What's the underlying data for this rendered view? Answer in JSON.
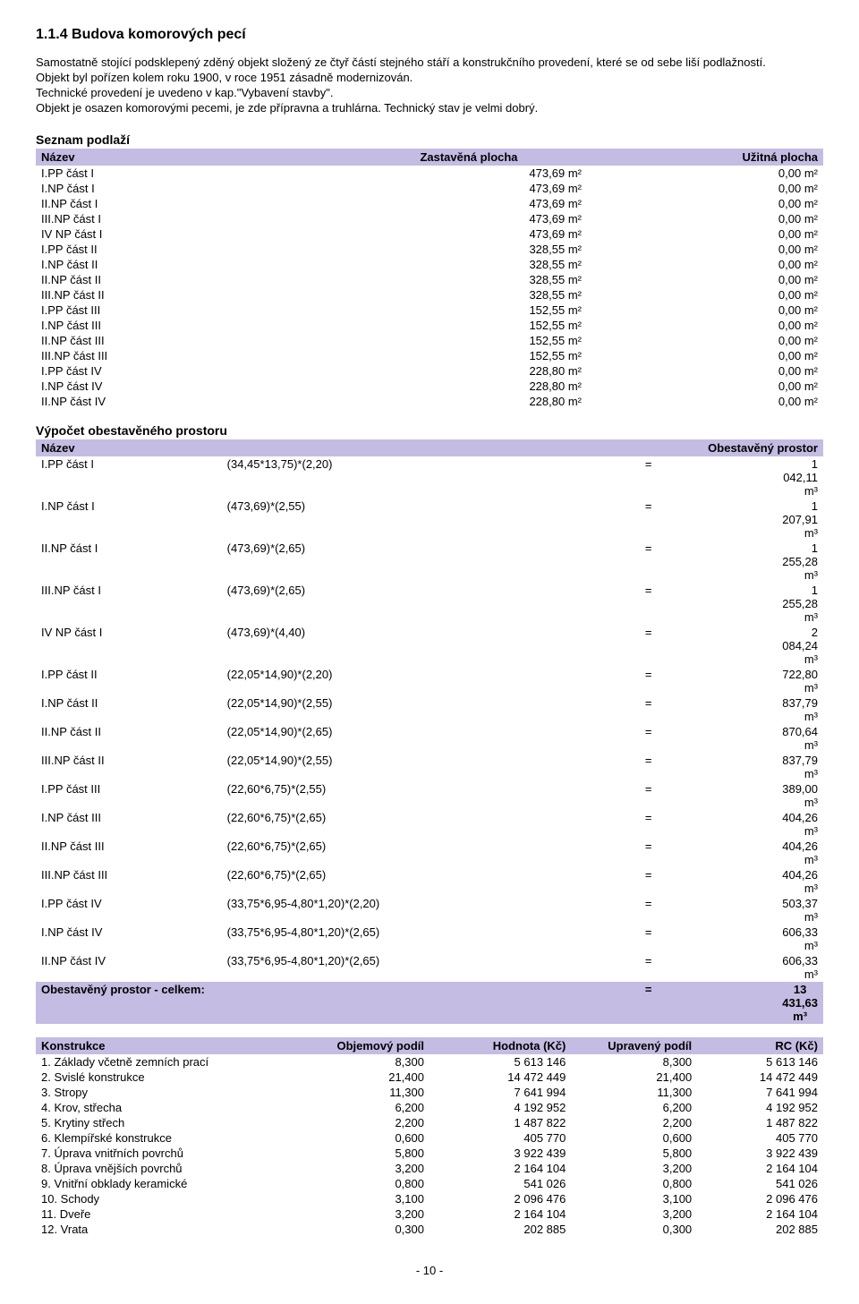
{
  "heading": "1.1.4 Budova komorových pecí",
  "intro_p1": "Samostatně stojící podsklepený zděný objekt složený ze čtyř částí stejného stáří a konstrukčního provedení, které se od sebe liší podlažností.",
  "intro_p2": "Objekt byl pořízen kolem roku 1900, v roce 1951 zásadně modernizován.",
  "intro_p3": "Technické provedení je uvedeno v kap.\"Vybavení stavby\".",
  "intro_p4": "Objekt je osazen komorovými pecemi, je zde přípravna a truhlárna. Technický stav je velmi dobrý.",
  "colors": {
    "header_bg": "#c4bce2"
  },
  "floors": {
    "title": "Seznam podlaží",
    "headers": [
      "Název",
      "Zastavěná plocha",
      "Užitná plocha"
    ],
    "rows": [
      [
        "I.PP část I",
        "473,69 m²",
        "0,00 m²"
      ],
      [
        "I.NP část I",
        "473,69 m²",
        "0,00 m²"
      ],
      [
        "II.NP část I",
        "473,69 m²",
        "0,00 m²"
      ],
      [
        "III.NP část I",
        "473,69 m²",
        "0,00 m²"
      ],
      [
        "IV NP část I",
        "473,69 m²",
        "0,00 m²"
      ],
      [
        "I.PP část II",
        "328,55 m²",
        "0,00 m²"
      ],
      [
        "I.NP část II",
        "328,55 m²",
        "0,00 m²"
      ],
      [
        "II.NP část II",
        "328,55 m²",
        "0,00 m²"
      ],
      [
        "III.NP část II",
        "328,55 m²",
        "0,00 m²"
      ],
      [
        "I.PP část III",
        "152,55 m²",
        "0,00 m²"
      ],
      [
        "I.NP část III",
        "152,55 m²",
        "0,00 m²"
      ],
      [
        "II.NP část III",
        "152,55 m²",
        "0,00 m²"
      ],
      [
        "III.NP část III",
        "152,55 m²",
        "0,00 m²"
      ],
      [
        "I.PP část IV",
        "228,80 m²",
        "0,00 m²"
      ],
      [
        "I.NP část IV",
        "228,80 m²",
        "0,00 m²"
      ],
      [
        "II.NP část IV",
        "228,80 m²",
        "0,00 m²"
      ]
    ]
  },
  "volume": {
    "title": "Výpočet obestavěného prostoru",
    "headers": [
      "Název",
      "Obestavěný prostor"
    ],
    "rows": [
      [
        "I.PP část I",
        "(34,45*13,75)*(2,20)",
        "=",
        "1 042,11 m³"
      ],
      [
        "I.NP část I",
        "(473,69)*(2,55)",
        "=",
        "1 207,91 m³"
      ],
      [
        "II.NP část I",
        "(473,69)*(2,65)",
        "=",
        "1 255,28 m³"
      ],
      [
        "III.NP část I",
        "(473,69)*(2,65)",
        "=",
        "1 255,28 m³"
      ],
      [
        "IV NP část I",
        "(473,69)*(4,40)",
        "=",
        "2 084,24 m³"
      ],
      [
        "I.PP část II",
        "(22,05*14,90)*(2,20)",
        "=",
        "722,80 m³"
      ],
      [
        "I.NP část II",
        "(22,05*14,90)*(2,55)",
        "=",
        "837,79 m³"
      ],
      [
        "II.NP část II",
        "(22,05*14,90)*(2,65)",
        "=",
        "870,64 m³"
      ],
      [
        "III.NP část II",
        "(22,05*14,90)*(2,55)",
        "=",
        "837,79 m³"
      ],
      [
        "I.PP část III",
        "(22,60*6,75)*(2,55)",
        "=",
        "389,00 m³"
      ],
      [
        "I.NP část III",
        "(22,60*6,75)*(2,65)",
        "=",
        "404,26 m³"
      ],
      [
        "II.NP část III",
        "(22,60*6,75)*(2,65)",
        "=",
        "404,26 m³"
      ],
      [
        "III.NP část III",
        "(22,60*6,75)*(2,65)",
        "=",
        "404,26 m³"
      ],
      [
        "I.PP část IV",
        "(33,75*6,95-4,80*1,20)*(2,20)",
        "=",
        "503,37 m³"
      ],
      [
        "I.NP část IV",
        "(33,75*6,95-4,80*1,20)*(2,65)",
        "=",
        "606,33 m³"
      ],
      [
        "II.NP část IV",
        "(33,75*6,95-4,80*1,20)*(2,65)",
        "=",
        "606,33 m³"
      ]
    ],
    "total_label": "Obestavěný prostor - celkem:",
    "total_eq": "=",
    "total_value": "13 431,63 m³"
  },
  "constructions": {
    "headers": [
      "Konstrukce",
      "Objemový podíl",
      "Hodnota (Kč)",
      "Upravený podíl",
      "RC (Kč)"
    ],
    "rows": [
      [
        "1. Základy včetně zemních prací",
        "8,300",
        "5 613 146",
        "8,300",
        "5 613 146"
      ],
      [
        "2. Svislé konstrukce",
        "21,400",
        "14 472 449",
        "21,400",
        "14 472 449"
      ],
      [
        "3. Stropy",
        "11,300",
        "7 641 994",
        "11,300",
        "7 641 994"
      ],
      [
        "4. Krov, střecha",
        "6,200",
        "4 192 952",
        "6,200",
        "4 192 952"
      ],
      [
        "5. Krytiny střech",
        "2,200",
        "1 487 822",
        "2,200",
        "1 487 822"
      ],
      [
        "6. Klempířské konstrukce",
        "0,600",
        "405 770",
        "0,600",
        "405 770"
      ],
      [
        "7. Úprava vnitřních povrchů",
        "5,800",
        "3 922 439",
        "5,800",
        "3 922 439"
      ],
      [
        "8. Úprava vnějších povrchů",
        "3,200",
        "2 164 104",
        "3,200",
        "2 164 104"
      ],
      [
        "9. Vnitřní obklady keramické",
        "0,800",
        "541 026",
        "0,800",
        "541 026"
      ],
      [
        "10. Schody",
        "3,100",
        "2 096 476",
        "3,100",
        "2 096 476"
      ],
      [
        "11. Dveře",
        "3,200",
        "2 164 104",
        "3,200",
        "2 164 104"
      ],
      [
        "12. Vrata",
        "0,300",
        "202 885",
        "0,300",
        "202 885"
      ]
    ]
  },
  "page_number": "- 10 -"
}
